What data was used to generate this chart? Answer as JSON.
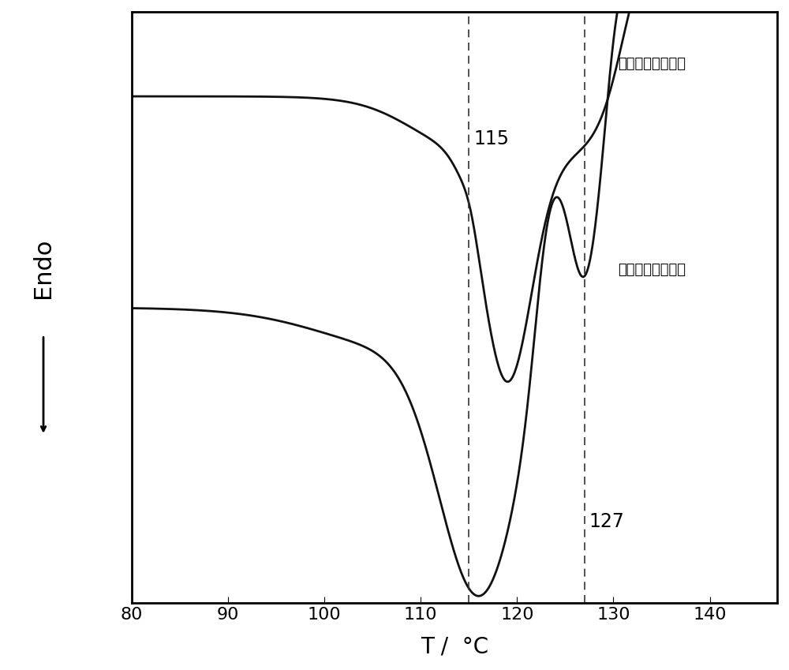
{
  "xlim": [
    80,
    147
  ],
  "xlabel": "T /  °C",
  "ylabel": "Endo",
  "xticks": [
    80,
    90,
    100,
    110,
    120,
    130,
    140
  ],
  "dashed_lines": [
    115,
    127
  ],
  "label_after": "二氯甲烷处理之后",
  "label_before": "二氯甲烷处理之前",
  "annotation_115": "115",
  "annotation_127": "127",
  "line_color": "#111111",
  "background_color": "#ffffff",
  "axes_bg": "#ffffff"
}
